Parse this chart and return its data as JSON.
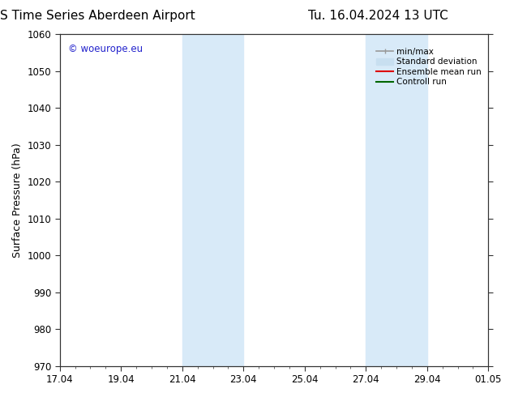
{
  "title_left": "ENS Time Series Aberdeen Airport",
  "title_right": "Tu. 16.04.2024 13 UTC",
  "ylabel": "Surface Pressure (hPa)",
  "ylim": [
    970,
    1060
  ],
  "yticks": [
    970,
    980,
    990,
    1000,
    1010,
    1020,
    1030,
    1040,
    1050,
    1060
  ],
  "xtick_labels": [
    "17.04",
    "19.04",
    "21.04",
    "23.04",
    "25.04",
    "27.04",
    "29.04",
    "01.05"
  ],
  "xtick_positions": [
    0,
    2,
    4,
    6,
    8,
    10,
    12,
    14
  ],
  "num_minor_ticks": 4,
  "shaded_bands": [
    {
      "x_start": 4,
      "x_end": 6,
      "color": "#d8eaf8"
    },
    {
      "x_start": 10,
      "x_end": 12,
      "color": "#d8eaf8"
    }
  ],
  "watermark_text": "© woeurope.eu",
  "watermark_color": "#2222cc",
  "legend_entries": [
    {
      "label": "min/max",
      "color": "#999999",
      "lw": 1.2
    },
    {
      "label": "Standard deviation",
      "color": "#c8dff0",
      "lw": 7
    },
    {
      "label": "Ensemble mean run",
      "color": "#dd0000",
      "lw": 1.5
    },
    {
      "label": "Controll run",
      "color": "#006600",
      "lw": 1.5
    }
  ],
  "bg_color": "#ffffff",
  "spine_color": "#333333",
  "title_fontsize": 11,
  "axis_label_fontsize": 9,
  "tick_fontsize": 8.5,
  "legend_fontsize": 7.5
}
